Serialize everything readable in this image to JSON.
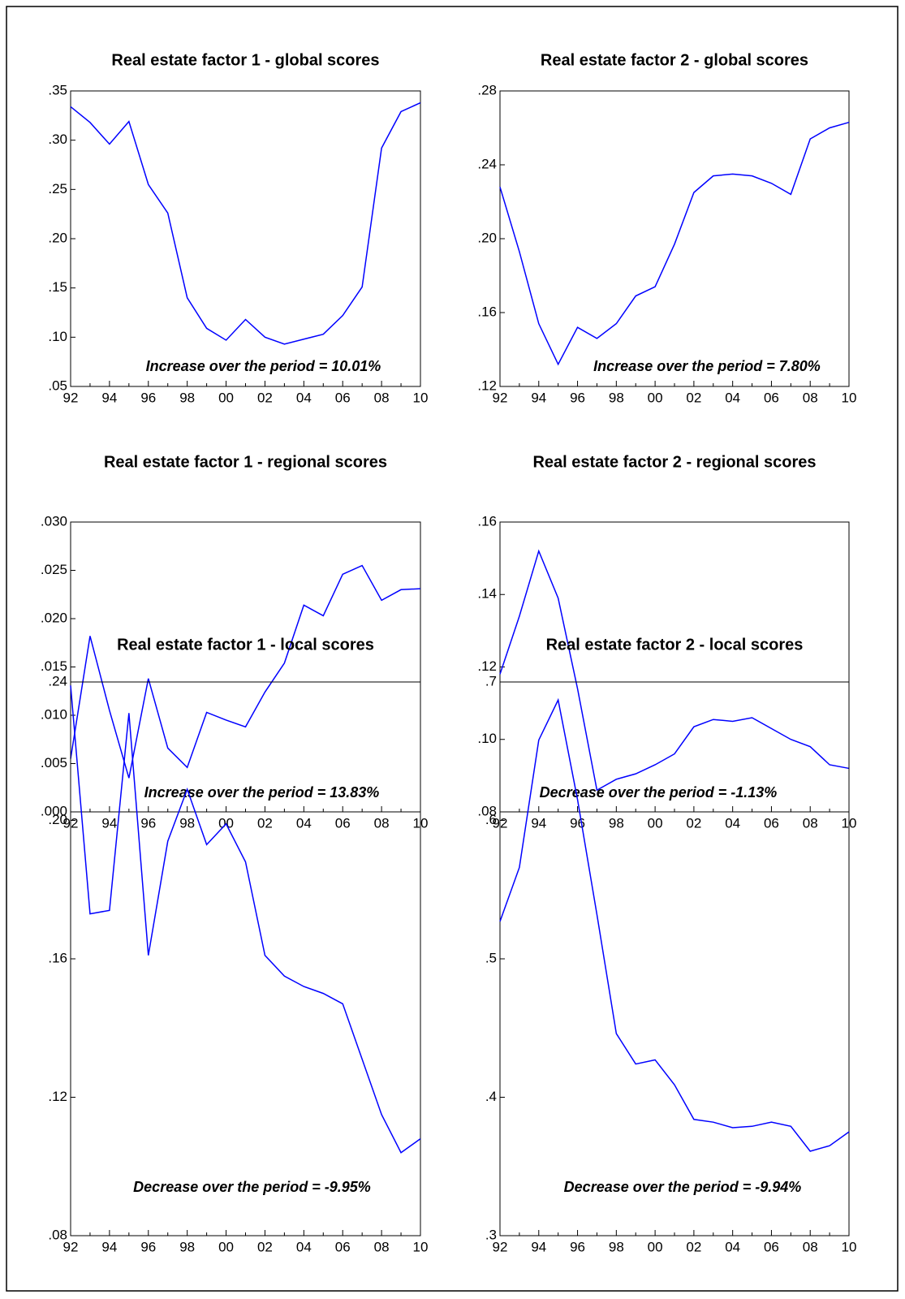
{
  "chart_data": [
    {
      "type": "line",
      "title": "Real estate factor 1 - global scores",
      "annotation": "Increase over the period = 10.01%",
      "categories": [
        "92",
        null,
        "94",
        null,
        "96",
        null,
        "98",
        null,
        "00",
        null,
        "02",
        null,
        "04",
        null,
        "06",
        null,
        "08",
        null,
        "10"
      ],
      "series": [
        {
          "color": "#0000ff",
          "values": [
            0.334,
            0.318,
            0.296,
            0.319,
            0.255,
            0.226,
            0.14,
            0.109,
            0.097,
            0.118,
            0.1,
            0.093,
            0.098,
            0.103,
            0.122,
            0.151,
            0.292,
            0.329,
            0.338
          ]
        }
      ],
      "ylim": [
        0.05,
        0.35
      ],
      "yticks": [
        {
          "value": 0.05,
          "label": ".05"
        },
        {
          "value": 0.1,
          "label": ".10"
        },
        {
          "value": 0.15,
          "label": ".15"
        },
        {
          "value": 0.2,
          "label": ".20"
        },
        {
          "value": 0.25,
          "label": ".25"
        },
        {
          "value": 0.3,
          "label": ".30"
        },
        {
          "value": 0.35,
          "label": ".35"
        }
      ]
    },
    {
      "type": "line",
      "title": "Real estate factor 2 - global scores",
      "annotation": "Increase over the period = 7.80%",
      "categories": [
        "92",
        null,
        "94",
        null,
        "96",
        null,
        "98",
        null,
        "00",
        null,
        "02",
        null,
        "04",
        null,
        "06",
        null,
        "08",
        null,
        "10"
      ],
      "series": [
        {
          "color": "#0000ff",
          "values": [
            0.228,
            0.193,
            0.154,
            0.132,
            0.152,
            0.146,
            0.154,
            0.169,
            0.174,
            0.197,
            0.225,
            0.234,
            0.235,
            0.234,
            0.23,
            0.224,
            0.254,
            0.26,
            0.263
          ]
        }
      ],
      "ylim": [
        0.12,
        0.28
      ],
      "yticks": [
        {
          "value": 0.12,
          "label": ".12"
        },
        {
          "value": 0.16,
          "label": ".16"
        },
        {
          "value": 0.2,
          "label": ".20"
        },
        {
          "value": 0.24,
          "label": ".24"
        },
        {
          "value": 0.28,
          "label": ".28"
        }
      ]
    },
    {
      "type": "line",
      "title": "Real estate factor 1 - regional scores",
      "annotation": "Increase over the period = 13.83%",
      "categories": [
        "92",
        null,
        "94",
        null,
        "96",
        null,
        "98",
        null,
        "00",
        null,
        "02",
        null,
        "04",
        null,
        "06",
        null,
        "08",
        null,
        "10"
      ],
      "series": [
        {
          "color": "#0000ff",
          "values": [
            0.0055,
            0.0182,
            0.0105,
            0.0035,
            0.0138,
            0.0066,
            0.0046,
            0.0103,
            0.0095,
            0.0088,
            0.0124,
            0.0154,
            0.0214,
            0.0203,
            0.0246,
            0.0255,
            0.0219,
            0.023,
            0.0231
          ]
        }
      ],
      "ylim": [
        0.0,
        0.03
      ],
      "yticks": [
        {
          "value": 0.0,
          "label": ".000"
        },
        {
          "value": 0.005,
          "label": ".005"
        },
        {
          "value": 0.01,
          "label": ".010"
        },
        {
          "value": 0.015,
          "label": ".015"
        },
        {
          "value": 0.02,
          "label": ".020"
        },
        {
          "value": 0.025,
          "label": ".025"
        },
        {
          "value": 0.03,
          "label": ".030"
        }
      ]
    },
    {
      "type": "line",
      "title": "Real estate factor 2 - regional scores",
      "annotation": "Decrease over the period = -1.13%",
      "categories": [
        "92",
        null,
        "94",
        null,
        "96",
        null,
        "98",
        null,
        "00",
        null,
        "02",
        null,
        "04",
        null,
        "06",
        null,
        "08",
        null,
        "10"
      ],
      "series": [
        {
          "color": "#0000ff",
          "values": [
            0.118,
            0.134,
            0.152,
            0.139,
            0.114,
            0.086,
            0.089,
            0.0905,
            0.093,
            0.096,
            0.1035,
            0.1055,
            0.105,
            0.106,
            0.103,
            0.1,
            0.098,
            0.093,
            0.092
          ]
        }
      ],
      "ylim": [
        0.08,
        0.16
      ],
      "yticks": [
        {
          "value": 0.08,
          "label": ".08"
        },
        {
          "value": 0.1,
          "label": ".10"
        },
        {
          "value": 0.12,
          "label": ".12"
        },
        {
          "value": 0.14,
          "label": ".14"
        },
        {
          "value": 0.16,
          "label": ".16"
        }
      ]
    },
    {
      "type": "line",
      "title": "Real estate factor 1 - local scores",
      "annotation": "Decrease over the period = -9.95%",
      "categories": [
        "92",
        null,
        "94",
        null,
        "96",
        null,
        "98",
        null,
        "00",
        null,
        "02",
        null,
        "04",
        null,
        "06",
        null,
        "08",
        null,
        "10"
      ],
      "series": [
        {
          "color": "#0000ff",
          "values": [
            0.239,
            0.173,
            0.174,
            0.231,
            0.161,
            0.194,
            0.209,
            0.193,
            0.199,
            0.188,
            0.161,
            0.155,
            0.152,
            0.15,
            0.147,
            0.131,
            0.115,
            0.104,
            0.108
          ]
        }
      ],
      "ylim": [
        0.08,
        0.24
      ],
      "yticks": [
        {
          "value": 0.08,
          "label": ".08"
        },
        {
          "value": 0.12,
          "label": ".12"
        },
        {
          "value": 0.16,
          "label": ".16"
        },
        {
          "value": 0.2,
          "label": ".20"
        },
        {
          "value": 0.24,
          "label": ".24"
        }
      ]
    },
    {
      "type": "line",
      "title": "Real estate factor 2 - local scores",
      "annotation": "Decrease over the period = -9.94%",
      "categories": [
        "92",
        null,
        "94",
        null,
        "96",
        null,
        "98",
        null,
        "00",
        null,
        "02",
        null,
        "04",
        null,
        "06",
        null,
        "08",
        null,
        "10"
      ],
      "series": [
        {
          "color": "#0000ff",
          "values": [
            0.527,
            0.566,
            0.658,
            0.687,
            0.615,
            0.532,
            0.446,
            0.424,
            0.427,
            0.409,
            0.384,
            0.382,
            0.378,
            0.379,
            0.382,
            0.379,
            0.361,
            0.365,
            0.375
          ]
        }
      ],
      "ylim": [
        0.3,
        0.7
      ],
      "yticks": [
        {
          "value": 0.3,
          "label": ".3"
        },
        {
          "value": 0.4,
          "label": ".4"
        },
        {
          "value": 0.5,
          "label": ".5"
        },
        {
          "value": 0.6,
          "label": ".6"
        },
        {
          "value": 0.7,
          "label": ".7"
        }
      ]
    }
  ]
}
